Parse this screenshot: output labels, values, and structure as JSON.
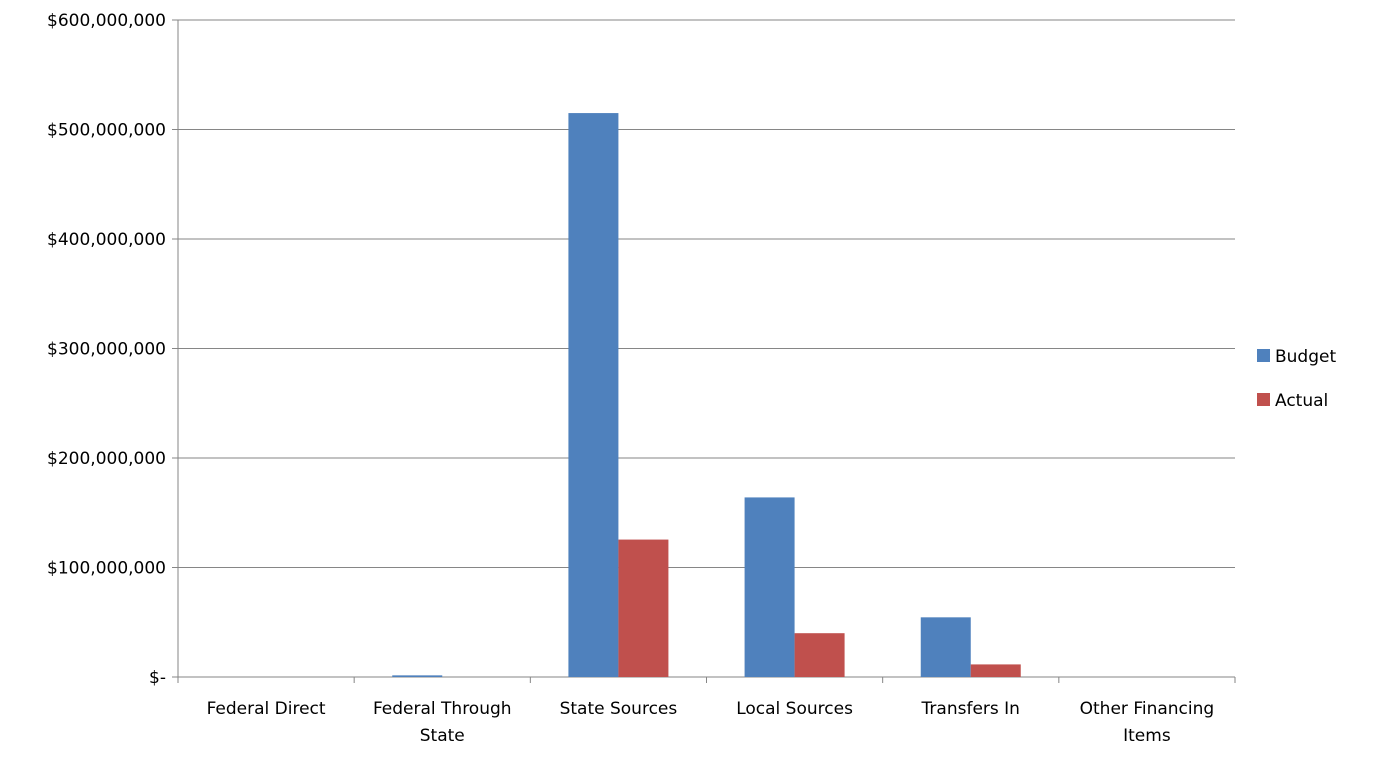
{
  "chart_data": {
    "type": "bar",
    "categories": [
      "Federal Direct",
      "Federal Through State",
      "State Sources",
      "Local Sources",
      "Transfers In",
      "Other Financing Items"
    ],
    "category_lines": [
      [
        "Federal Direct"
      ],
      [
        "Federal Through",
        "State"
      ],
      [
        "State Sources"
      ],
      [
        "Local Sources"
      ],
      [
        "Transfers In"
      ],
      [
        "Other Financing",
        "Items"
      ]
    ],
    "series": [
      {
        "name": "Budget",
        "color": "#4f81bd",
        "values": [
          0,
          1500000,
          515000000,
          164000000,
          54500000,
          0
        ]
      },
      {
        "name": "Actual",
        "color": "#c0504d",
        "values": [
          0,
          0,
          125500000,
          40000000,
          11500000,
          0
        ]
      }
    ],
    "y_ticks": [
      0,
      100000000,
      200000000,
      300000000,
      400000000,
      500000000,
      600000000
    ],
    "y_tick_labels": [
      "$-",
      "$100,000,000",
      "$200,000,000",
      "$300,000,000",
      "$400,000,000",
      "$500,000,000",
      "$600,000,000"
    ],
    "ylim": [
      0,
      600000000
    ],
    "grid": true,
    "legend_position": "right",
    "title": "",
    "xlabel": "",
    "ylabel": ""
  }
}
